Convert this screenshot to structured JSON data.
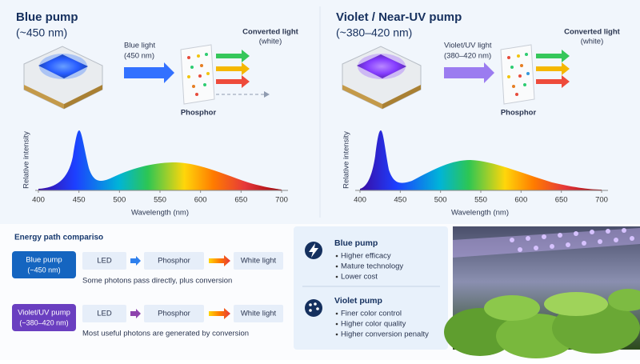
{
  "left_panel": {
    "title": "Blue pump",
    "subtitle": "(~450 nm)",
    "input_label": "Blue light",
    "input_wavelength": "(450 nm)",
    "output_label": "Converted light",
    "output_note": "(white)",
    "phosphor": "Phosphor",
    "spectrum": {
      "y_label": "Relative intensity",
      "x_label": "Wavelength (nm)",
      "xlim": [
        400,
        700
      ],
      "xticks": [
        400,
        450,
        500,
        550,
        600,
        650,
        700
      ]
    }
  },
  "right_panel": {
    "title": "Violet / Near-UV pump",
    "subtitle": "(~380–420 nm)",
    "input_label": "Violet/UV light",
    "input_wavelength": "(380–420 nm)",
    "output_label": "Converted light",
    "output_note": "(white)",
    "phosphor": "Phosphor",
    "spectrum": {
      "y_label": "Relative intensity",
      "x_label": "Wavelength (nm)",
      "xlim": [
        400,
        700
      ],
      "xticks": [
        400,
        450,
        500,
        550,
        600,
        650,
        700
      ]
    }
  },
  "comparison": {
    "title": "Energy path compariso",
    "rows": [
      {
        "label": "Blue pump",
        "sublabel": "(~450 nm)",
        "steps": [
          "LED",
          "Phosphor",
          "White light"
        ],
        "note": "Some photons pass directly, plus conversion"
      },
      {
        "label": "Violet/UV pump",
        "sublabel": "(~380–420 nm)",
        "steps": [
          "LED",
          "Phosphor",
          "White light"
        ],
        "note": "Most useful photons are generated by conversion"
      }
    ]
  },
  "features": [
    {
      "title": "Blue pump",
      "items": [
        "Higher efficacy",
        "Mature technology",
        "Lower cost"
      ]
    },
    {
      "title": "Violet pump",
      "items": [
        "Finer color control",
        "Higher color quality",
        "Higher conversion penalty"
      ]
    }
  ]
}
